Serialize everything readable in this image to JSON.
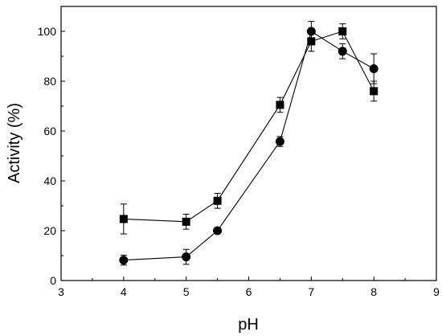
{
  "chart_data": {
    "type": "line",
    "xlabel": "pH",
    "ylabel": "Activity (%)",
    "xlim": [
      3,
      9
    ],
    "ylim": [
      0,
      110
    ],
    "xticks": [
      3,
      4,
      5,
      6,
      7,
      8,
      9
    ],
    "yticks": [
      0,
      20,
      40,
      60,
      80,
      100
    ],
    "grid": false,
    "series": [
      {
        "marker": "square",
        "color": "#000000",
        "points": [
          {
            "x": 4.0,
            "y": 24.7,
            "err": 6.0
          },
          {
            "x": 5.0,
            "y": 23.6,
            "err": 3.0
          },
          {
            "x": 5.5,
            "y": 32.0,
            "err": 3.0
          },
          {
            "x": 6.5,
            "y": 70.5,
            "err": 3.0
          },
          {
            "x": 7.0,
            "y": 96.0,
            "err": 4.0
          },
          {
            "x": 7.5,
            "y": 100.0,
            "err": 3.0
          },
          {
            "x": 8.0,
            "y": 76.0,
            "err": 4.0
          }
        ]
      },
      {
        "marker": "circle",
        "color": "#000000",
        "points": [
          {
            "x": 4.0,
            "y": 8.2,
            "err": 2.0
          },
          {
            "x": 5.0,
            "y": 9.5,
            "err": 3.0
          },
          {
            "x": 5.5,
            "y": 20.0,
            "err": 0.8
          },
          {
            "x": 6.5,
            "y": 55.8,
            "err": 2.0
          },
          {
            "x": 7.0,
            "y": 100.0,
            "err": 4.0
          },
          {
            "x": 7.5,
            "y": 92.0,
            "err": 3.0
          },
          {
            "x": 8.0,
            "y": 85.0,
            "err": 6.0
          }
        ]
      }
    ]
  }
}
